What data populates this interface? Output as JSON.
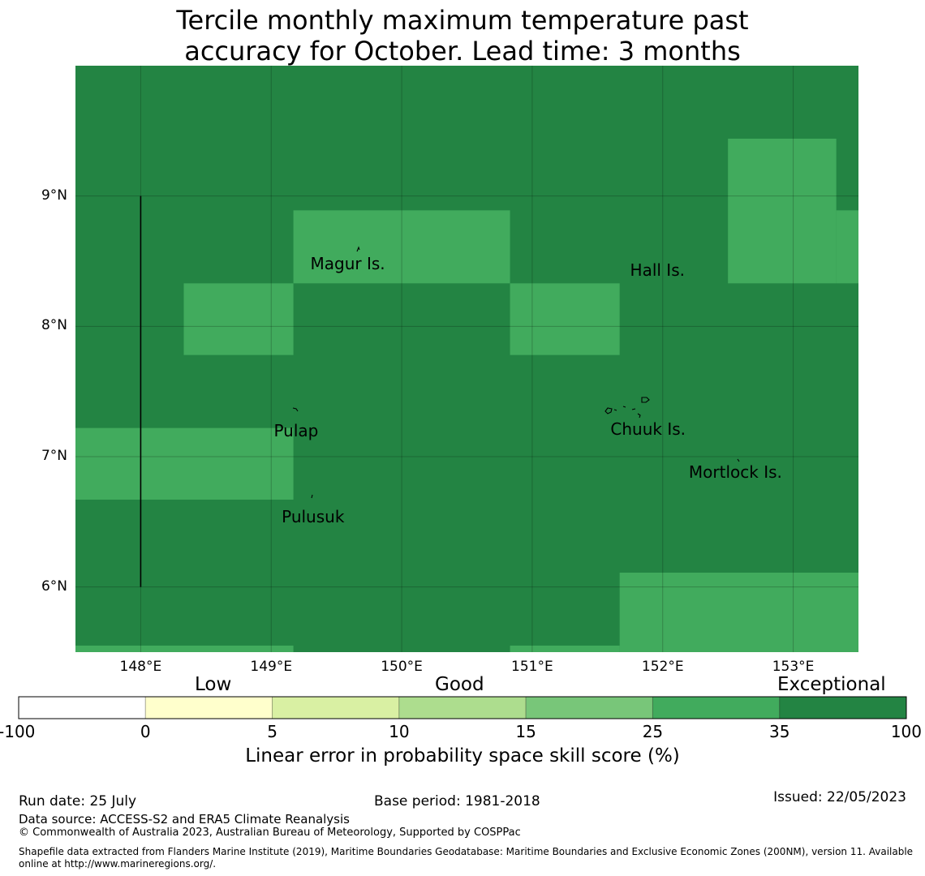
{
  "title": {
    "line1": "Tercile monthly maximum temperature past",
    "line2": "accuracy for October. Lead time: 3 months"
  },
  "map": {
    "lon_range": [
      147.5,
      153.5
    ],
    "lat_range": [
      5.5,
      10.0
    ],
    "grid": true,
    "lat_ticks": [
      {
        "value": 9,
        "label": "9°N"
      },
      {
        "value": 8,
        "label": "8°N"
      },
      {
        "value": 7,
        "label": "7°N"
      },
      {
        "value": 6,
        "label": "6°N"
      }
    ],
    "lon_ticks": [
      {
        "value": 148,
        "label": "148°E"
      },
      {
        "value": 149,
        "label": "149°E"
      },
      {
        "value": 150,
        "label": "150°E"
      },
      {
        "value": 151,
        "label": "151°E"
      },
      {
        "value": 152,
        "label": "152°E"
      },
      {
        "value": 153,
        "label": "153°E"
      }
    ],
    "background_category": "35-100",
    "cells_25_35": [
      {
        "lon": [
          147.5,
          149.17
        ],
        "lat": [
          6.67,
          7.22
        ]
      },
      {
        "lon": [
          148.33,
          149.17
        ],
        "lat": [
          7.78,
          8.33
        ]
      },
      {
        "lon": [
          149.17,
          150.83
        ],
        "lat": [
          8.33,
          8.89
        ]
      },
      {
        "lon": [
          150.83,
          151.67
        ],
        "lat": [
          7.78,
          8.33
        ]
      },
      {
        "lon": [
          152.5,
          153.33
        ],
        "lat": [
          8.33,
          9.44
        ]
      },
      {
        "lon": [
          153.33,
          153.5
        ],
        "lat": [
          8.33,
          8.89
        ]
      },
      {
        "lon": [
          151.67,
          153.5
        ],
        "lat": [
          5.5,
          6.11
        ]
      },
      {
        "lon": [
          147.5,
          149.17
        ],
        "lat": [
          5.5,
          5.55
        ]
      },
      {
        "lon": [
          150.83,
          151.67
        ],
        "lat": [
          5.5,
          5.55
        ]
      }
    ],
    "boundary_line": {
      "lon": 148.0,
      "lat": [
        6.0,
        9.0
      ]
    },
    "islands": [
      {
        "name": "Magur Is.",
        "lon": 149.3,
        "lat": 8.48
      },
      {
        "name": "Hall Is.",
        "lon": 151.75,
        "lat": 8.43
      },
      {
        "name": "Pulap",
        "lon": 149.02,
        "lat": 7.2
      },
      {
        "name": "Chuuk Is.",
        "lon": 151.6,
        "lat": 7.21
      },
      {
        "name": "Mortlock Is.",
        "lon": 152.2,
        "lat": 6.88
      },
      {
        "name": "Pulusuk",
        "lon": 149.08,
        "lat": 6.54
      }
    ]
  },
  "colorbar": {
    "categories": {
      "low": "Low",
      "good": "Good",
      "exceptional": "Exceptional"
    },
    "bins": [
      {
        "from": "-100",
        "to": "0",
        "color": "#ffffff"
      },
      {
        "from": "0",
        "to": "5",
        "color": "#ffffcc"
      },
      {
        "from": "5",
        "to": "10",
        "color": "#d9f0a3"
      },
      {
        "from": "10",
        "to": "15",
        "color": "#addd8e"
      },
      {
        "from": "15",
        "to": "25",
        "color": "#78c679"
      },
      {
        "from": "25",
        "to": "35",
        "color": "#41ab5d"
      },
      {
        "from": "35",
        "to": "100",
        "color": "#238443"
      }
    ],
    "tick_labels": [
      "-100",
      "0",
      "5",
      "10",
      "15",
      "25",
      "35",
      "100"
    ],
    "label": "Linear error in probability space skill score (%)"
  },
  "footer": {
    "run_date": "Run date: 25 July",
    "base_period": "Base period: 1981-2018",
    "issued": "Issued: 22/05/2023",
    "data_source": "Data source: ACCESS-S2 and ERA5 Climate Reanalysis",
    "copyright": "© Commonwealth of Australia 2023, Australian Bureau of Meteorology, Supported by COSPPac",
    "shapefile_line1": "Shapefile data extracted from Flanders Marine Institute (2019), Maritime Boundaries Geodatabase: Maritime Boundaries and Exclusive Economic Zones (200NM), version 11. Available",
    "shapefile_line2": "online at http://www.marineregions.org/."
  }
}
